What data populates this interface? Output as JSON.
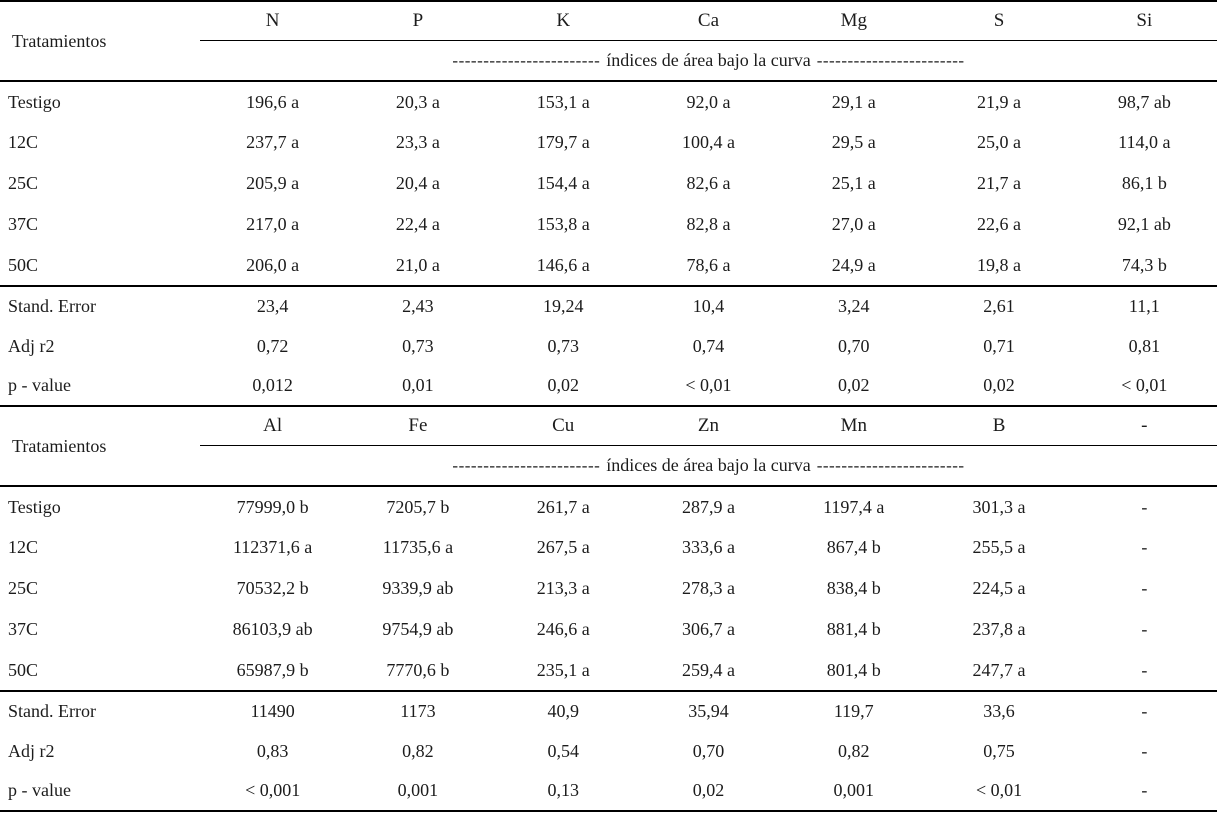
{
  "table": {
    "sections": [
      {
        "row_header": "Tratamientos",
        "columns": [
          "N",
          "P",
          "K",
          "Ca",
          "Mg",
          "S",
          "Si"
        ],
        "subheader": {
          "left": "------------------------",
          "text": "índices de área bajo la curva",
          "right": "------------------------"
        },
        "rows": [
          {
            "label": "Testigo",
            "values": [
              "196,6 a",
              "20,3 a",
              "153,1 a",
              "92,0 a",
              "29,1 a",
              "21,9 a",
              "98,7 ab"
            ]
          },
          {
            "label": "12C",
            "values": [
              "237,7 a",
              "23,3 a",
              "179,7 a",
              "100,4 a",
              "29,5 a",
              "25,0 a",
              "114,0 a"
            ]
          },
          {
            "label": "25C",
            "values": [
              "205,9 a",
              "20,4 a",
              "154,4 a",
              "82,6 a",
              "25,1 a",
              "21,7 a",
              "86,1 b"
            ]
          },
          {
            "label": "37C",
            "values": [
              "217,0 a",
              "22,4 a",
              "153,8 a",
              "82,8 a",
              "27,0 a",
              "22,6 a",
              "92,1 ab"
            ]
          },
          {
            "label": "50C",
            "values": [
              "206,0 a",
              "21,0 a",
              "146,6 a",
              "78,6 a",
              "24,9 a",
              "19,8 a",
              "74,3 b"
            ]
          }
        ],
        "stats": [
          {
            "label": "Stand. Error",
            "values": [
              "23,4",
              "2,43",
              "19,24",
              "10,4",
              "3,24",
              "2,61",
              "11,1"
            ]
          },
          {
            "label": "Adj r2",
            "values": [
              "0,72",
              "0,73",
              "0,73",
              "0,74",
              "0,70",
              "0,71",
              "0,81"
            ]
          },
          {
            "label": "p - value",
            "values": [
              "0,012",
              "0,01",
              "0,02",
              "< 0,01",
              "0,02",
              "0,02",
              "< 0,01"
            ]
          }
        ]
      },
      {
        "row_header": "Tratamientos",
        "columns": [
          "Al",
          "Fe",
          "Cu",
          "Zn",
          "Mn",
          "B",
          "-"
        ],
        "subheader": {
          "left": "------------------------",
          "text": "índices de área bajo la curva",
          "right": "------------------------"
        },
        "rows": [
          {
            "label": "Testigo",
            "values": [
              "77999,0 b",
              "7205,7 b",
              "261,7 a",
              "287,9 a",
              "1197,4 a",
              "301,3 a",
              "-"
            ]
          },
          {
            "label": "12C",
            "values": [
              "112371,6 a",
              "11735,6 a",
              "267,5 a",
              "333,6 a",
              "867,4 b",
              "255,5 a",
              "-"
            ]
          },
          {
            "label": "25C",
            "values": [
              "70532,2 b",
              "9339,9 ab",
              "213,3 a",
              "278,3 a",
              "838,4 b",
              "224,5 a",
              "-"
            ]
          },
          {
            "label": "37C",
            "values": [
              "86103,9 ab",
              "9754,9 ab",
              "246,6 a",
              "306,7 a",
              "881,4 b",
              "237,8 a",
              "-"
            ]
          },
          {
            "label": "50C",
            "values": [
              "65987,9 b",
              "7770,6 b",
              "235,1 a",
              "259,4 a",
              "801,4 b",
              "247,7 a",
              "-"
            ]
          }
        ],
        "stats": [
          {
            "label": "Stand. Error",
            "values": [
              "11490",
              "1173",
              "40,9",
              "35,94",
              "119,7",
              "33,6",
              "-"
            ]
          },
          {
            "label": "Adj r2",
            "values": [
              "0,83",
              "0,82",
              "0,54",
              "0,70",
              "0,82",
              "0,75",
              "-"
            ]
          },
          {
            "label": "p - value",
            "values": [
              "< 0,001",
              "0,001",
              "0,13",
              "0,02",
              "0,001",
              "< 0,01",
              "-"
            ]
          }
        ]
      }
    ]
  }
}
